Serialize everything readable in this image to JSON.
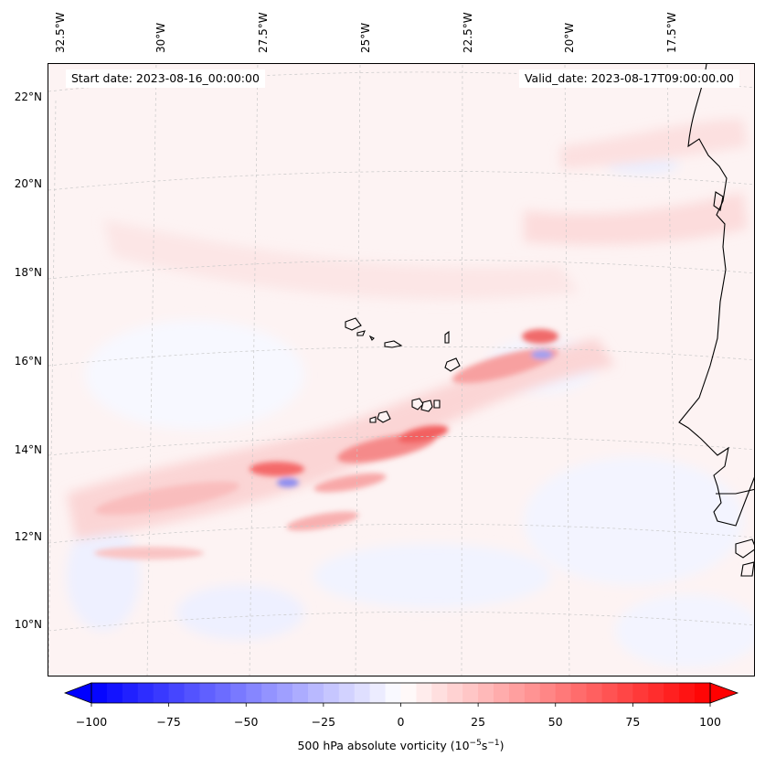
{
  "map": {
    "type": "filled-contour-map",
    "projection": "conic",
    "start_date": "Start date: 2023-08-16_00:00:00",
    "valid_date": "Valid_date: 2023-08-17T09:00:00.00",
    "lon_labels": [
      "32.5°W",
      "30°W",
      "27.5°W",
      "25°W",
      "22.5°W",
      "20°W",
      "17.5°W"
    ],
    "lat_labels": [
      "22°N",
      "20°N",
      "18°N",
      "16°N",
      "14°N",
      "12°N",
      "10°N"
    ],
    "colors": {
      "positive": "#ff0000",
      "negative": "#0000ff",
      "coast": "#000000",
      "grid": "#c8c8c8"
    }
  },
  "colorbar": {
    "label": "500 hPa absolute vorticity (10",
    "label_exp1": "−5",
    "label_mid": "s",
    "label_exp2": "−1",
    "label_end": ")",
    "ticks": [
      "−100",
      "−75",
      "−50",
      "−25",
      "0",
      "25",
      "50",
      "75",
      "100"
    ],
    "vmin": -100,
    "vmax": 100
  }
}
